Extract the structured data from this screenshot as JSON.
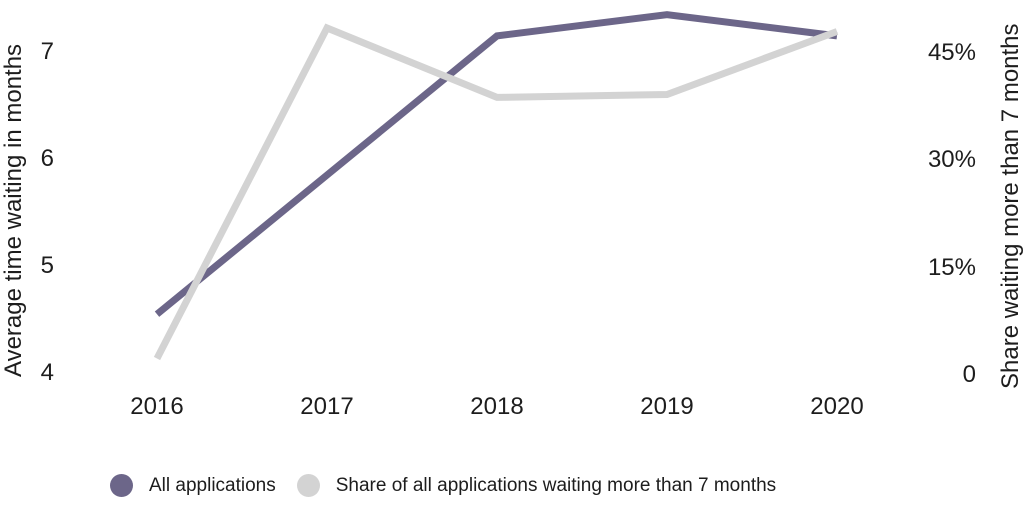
{
  "chart_data": {
    "type": "line",
    "title": "",
    "grid": "off",
    "legend_position": "bottom",
    "x": {
      "categories": [
        "2016",
        "2017",
        "2018",
        "2019",
        "2020"
      ]
    },
    "y_left": {
      "label": "Average time waiting in months",
      "range": [
        4,
        7
      ],
      "ticks": [
        {
          "value": 7,
          "label": "7"
        },
        {
          "value": 6,
          "label": "6"
        },
        {
          "value": 5,
          "label": "5"
        },
        {
          "value": 4,
          "label": "4"
        }
      ]
    },
    "y_right": {
      "label": "Share waiting more than 7 months",
      "range": [
        0,
        45
      ],
      "ticks": [
        {
          "value": 45,
          "label": "45%"
        },
        {
          "value": 30,
          "label": "30%"
        },
        {
          "value": 15,
          "label": "15%"
        },
        {
          "value": 0,
          "label": "0"
        }
      ]
    },
    "series": [
      {
        "name": "All applications",
        "axis": "left",
        "unit": "months",
        "color": "#6c6689",
        "values": [
          4.55,
          5.85,
          7.15,
          7.35,
          7.15
        ]
      },
      {
        "name": "Share of all applications waiting more than 7 months",
        "axis": "right",
        "unit": "%",
        "color": "#d3d3d3",
        "values": [
          2.3,
          48.5,
          38.8,
          39.2,
          48.0
        ]
      }
    ]
  }
}
